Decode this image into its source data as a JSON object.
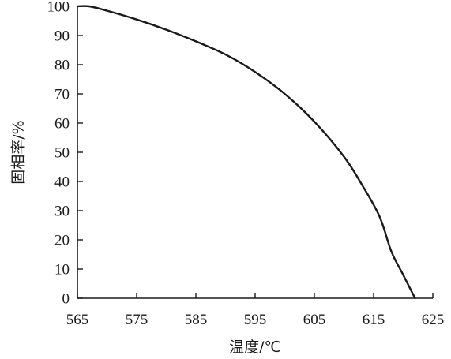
{
  "chart_data": {
    "type": "line",
    "title": "",
    "xlabel": "温度/℃",
    "ylabel": "固相率/%",
    "xlim": [
      565,
      625
    ],
    "ylim": [
      0,
      100
    ],
    "x_ticks": [
      565,
      575,
      585,
      595,
      605,
      615,
      625
    ],
    "y_ticks": [
      0,
      10,
      20,
      30,
      40,
      50,
      60,
      70,
      80,
      90,
      100
    ],
    "grid": false,
    "legend": "none",
    "line_color": "#1a1a1a",
    "series": [
      {
        "x": [
          565,
          567,
          570,
          575,
          580,
          585,
          590,
          595,
          600,
          605,
          610,
          613,
          616,
          618,
          620,
          622
        ],
        "y": [
          100,
          100,
          98.5,
          95.5,
          92,
          88,
          83.5,
          77.5,
          70,
          60.5,
          48.5,
          39,
          28,
          16,
          8,
          0
        ]
      }
    ]
  }
}
